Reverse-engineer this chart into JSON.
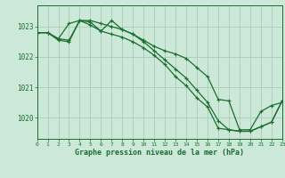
{
  "title": "Graphe pression niveau de la mer (hPa)",
  "background_color": "#cce8d8",
  "grid_color": "#aaccb8",
  "line_color": "#1a6e2e",
  "xlim": [
    0,
    23
  ],
  "ylim": [
    1019.3,
    1023.7
  ],
  "yticks": [
    1020,
    1021,
    1022,
    1023
  ],
  "xticks": [
    0,
    1,
    2,
    3,
    4,
    5,
    6,
    7,
    8,
    9,
    10,
    11,
    12,
    13,
    14,
    15,
    16,
    17,
    18,
    19,
    20,
    21,
    22,
    23
  ],
  "series1_y": [
    1022.8,
    1022.8,
    1022.6,
    1023.1,
    1023.2,
    1023.05,
    1022.85,
    1023.2,
    1022.9,
    1022.75,
    1022.55,
    1022.35,
    1022.2,
    1022.1,
    1021.95,
    1021.65,
    1021.35,
    1020.6,
    1020.55,
    1019.6,
    1019.6,
    1020.2,
    1020.4,
    1020.5
  ],
  "series2_y": [
    1022.8,
    1022.8,
    1022.6,
    1022.55,
    1023.2,
    1023.2,
    1023.1,
    1023.0,
    1022.9,
    1022.75,
    1022.5,
    1022.2,
    1021.9,
    1021.6,
    1021.3,
    1020.9,
    1020.5,
    1019.9,
    1019.6,
    1019.55,
    1019.55,
    1019.7,
    1019.85,
    1020.55
  ],
  "series3_y": [
    1022.8,
    1022.8,
    1022.55,
    1022.5,
    1023.2,
    1023.15,
    1022.85,
    1022.75,
    1022.65,
    1022.5,
    1022.3,
    1022.05,
    1021.75,
    1021.35,
    1021.05,
    1020.65,
    1020.35,
    1019.65,
    1019.6,
    1019.55,
    1019.55,
    1019.7,
    1019.85,
    1020.55
  ]
}
